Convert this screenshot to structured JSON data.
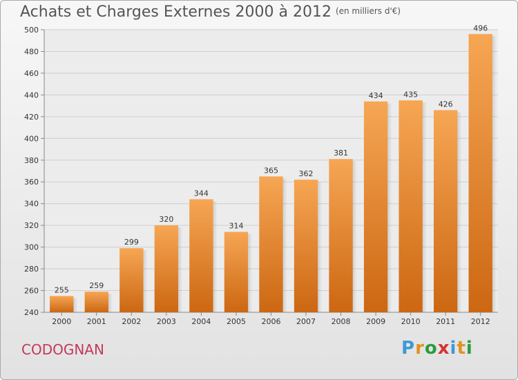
{
  "title": "Achats et Charges Externes 2000 à 2012",
  "unit": "(en milliers d'€)",
  "commune": "CODOGNAN",
  "logo": {
    "letters": [
      "P",
      "r",
      "o",
      "x",
      "i",
      "t",
      "i"
    ],
    "colors": [
      "#3d9ad6",
      "#e0921f",
      "#2b9c3d",
      "#d5342e",
      "#3d9ad6",
      "#e0921f",
      "#2b9c3d"
    ]
  },
  "colors": {
    "bar_top": "#f6a654",
    "bar_bottom": "#cc6712",
    "grid": "#cfcfcf",
    "plot_bg": "#ececec"
  },
  "chart_data": {
    "type": "bar",
    "title": "Achats et Charges Externes 2000 à 2012",
    "ylabel": "en milliers d'€",
    "categories": [
      "2000",
      "2001",
      "2002",
      "2003",
      "2004",
      "2005",
      "2006",
      "2007",
      "2008",
      "2009",
      "2010",
      "2011",
      "2012"
    ],
    "values": [
      255,
      259,
      299,
      320,
      344,
      314,
      365,
      362,
      381,
      434,
      435,
      426,
      496
    ],
    "ylim": [
      240,
      500
    ],
    "yticks": [
      240,
      260,
      280,
      300,
      320,
      340,
      360,
      380,
      400,
      420,
      440,
      460,
      480,
      500
    ],
    "grid": true
  }
}
